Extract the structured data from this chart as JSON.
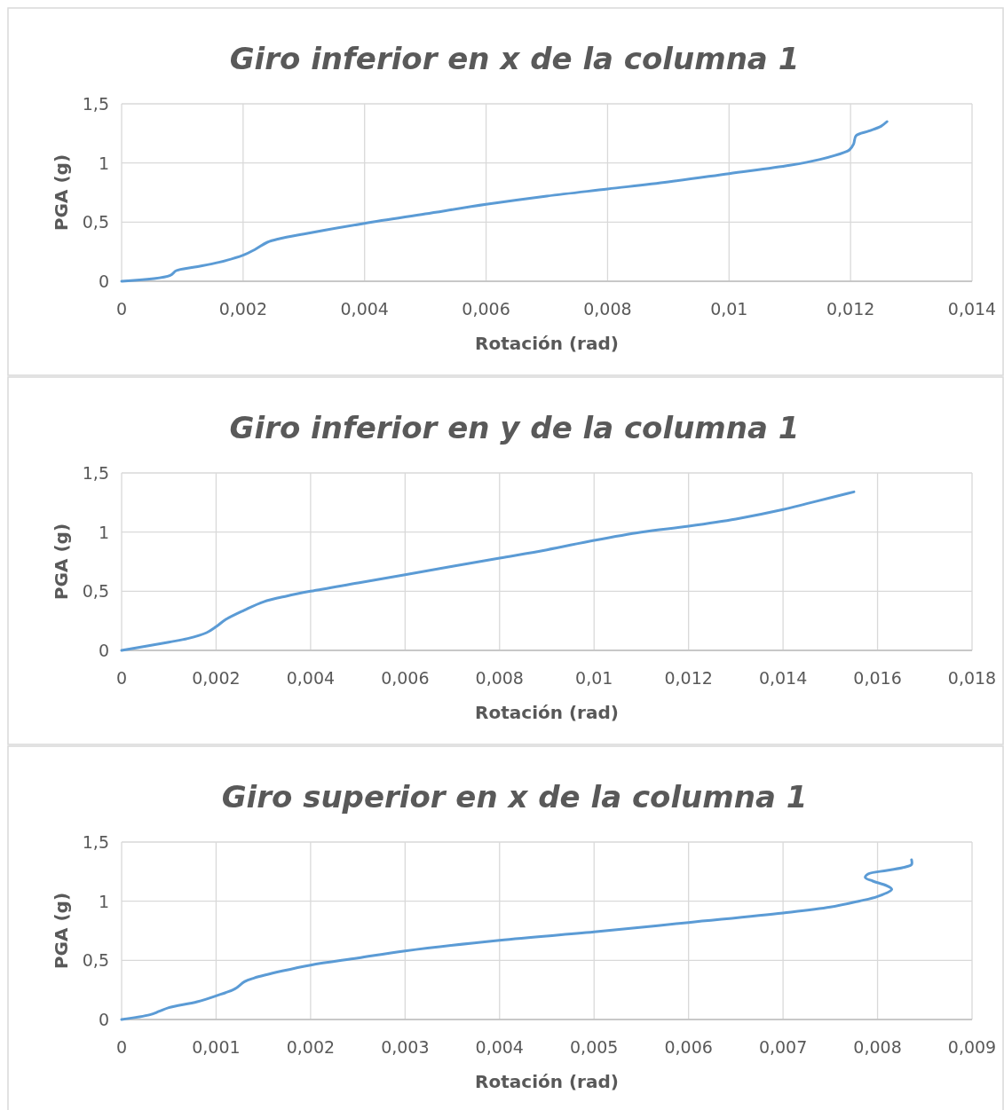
{
  "chart_data": [
    {
      "type": "line",
      "title": "Giro inferior en x de la columna 1",
      "xlabel": "Rotación (rad)",
      "ylabel": "PGA (g)",
      "xlim": [
        0,
        0.014
      ],
      "xticks": [
        {
          "value": 0,
          "label": "0"
        },
        {
          "value": 0.002,
          "label": "0,002"
        },
        {
          "value": 0.004,
          "label": "0,004"
        },
        {
          "value": 0.006,
          "label": "0,006"
        },
        {
          "value": 0.008,
          "label": "0,008"
        },
        {
          "value": 0.01,
          "label": "0,01"
        },
        {
          "value": 0.012,
          "label": "0,012"
        },
        {
          "value": 0.014,
          "label": "0,014"
        }
      ],
      "ylim": [
        0,
        1.5
      ],
      "yticks": [
        {
          "value": 0,
          "label": "0"
        },
        {
          "value": 0.5,
          "label": "0,5"
        },
        {
          "value": 1,
          "label": "1"
        },
        {
          "value": 1.5,
          "label": "1,5"
        }
      ],
      "grid": true,
      "marker": "none",
      "line_style": "solid",
      "series": [
        {
          "color": "#5b9bd5",
          "x": [
            0,
            0.0008,
            0.0009,
            0.0012,
            0.0016,
            0.002,
            0.0022,
            0.0024,
            0.0026,
            0.003,
            0.004,
            0.005,
            0.006,
            0.007,
            0.008,
            0.009,
            0.01,
            0.011,
            0.0115,
            0.0119,
            0.01198,
            0.01205,
            0.01209,
            0.0123,
            0.0125,
            0.0126
          ],
          "values": [
            0,
            0.05,
            0.09,
            0.12,
            0.16,
            0.22,
            0.27,
            0.33,
            0.36,
            0.4,
            0.49,
            0.57,
            0.65,
            0.72,
            0.78,
            0.84,
            0.91,
            0.98,
            1.03,
            1.09,
            1.11,
            1.16,
            1.23,
            1.27,
            1.31,
            1.35
          ]
        }
      ]
    },
    {
      "type": "line",
      "title": "Giro inferior en y de la columna 1",
      "xlabel": "Rotación (rad)",
      "ylabel": "PGA (g)",
      "xlim": [
        0,
        0.018
      ],
      "xticks": [
        {
          "value": 0,
          "label": "0"
        },
        {
          "value": 0.002,
          "label": "0,002"
        },
        {
          "value": 0.004,
          "label": "0,004"
        },
        {
          "value": 0.006,
          "label": "0,006"
        },
        {
          "value": 0.008,
          "label": "0,008"
        },
        {
          "value": 0.01,
          "label": "0,01"
        },
        {
          "value": 0.012,
          "label": "0,012"
        },
        {
          "value": 0.014,
          "label": "0,014"
        },
        {
          "value": 0.016,
          "label": "0,016"
        },
        {
          "value": 0.018,
          "label": "0,018"
        }
      ],
      "ylim": [
        0,
        1.5
      ],
      "yticks": [
        {
          "value": 0,
          "label": "0"
        },
        {
          "value": 0.5,
          "label": "0,5"
        },
        {
          "value": 1,
          "label": "1"
        },
        {
          "value": 1.5,
          "label": "1,5"
        }
      ],
      "grid": true,
      "marker": "none",
      "line_style": "solid",
      "series": [
        {
          "color": "#5b9bd5",
          "x": [
            0,
            0.001,
            0.0014,
            0.0018,
            0.002,
            0.0022,
            0.0026,
            0.003,
            0.0035,
            0.004,
            0.005,
            0.006,
            0.007,
            0.008,
            0.009,
            0.01,
            0.011,
            0.012,
            0.013,
            0.014,
            0.0145,
            0.015,
            0.0153,
            0.0155
          ],
          "values": [
            0,
            0.07,
            0.1,
            0.15,
            0.2,
            0.26,
            0.34,
            0.41,
            0.46,
            0.5,
            0.57,
            0.64,
            0.71,
            0.78,
            0.85,
            0.93,
            1.0,
            1.05,
            1.11,
            1.19,
            1.24,
            1.29,
            1.32,
            1.34
          ]
        }
      ]
    },
    {
      "type": "line",
      "title": "Giro superior en x de la columna 1",
      "xlabel": "Rotación (rad)",
      "ylabel": "PGA (g)",
      "xlim": [
        0,
        0.009
      ],
      "xticks": [
        {
          "value": 0,
          "label": "0"
        },
        {
          "value": 0.001,
          "label": "0,001"
        },
        {
          "value": 0.002,
          "label": "0,002"
        },
        {
          "value": 0.003,
          "label": "0,003"
        },
        {
          "value": 0.004,
          "label": "0,004"
        },
        {
          "value": 0.005,
          "label": "0,005"
        },
        {
          "value": 0.006,
          "label": "0,006"
        },
        {
          "value": 0.007,
          "label": "0,007"
        },
        {
          "value": 0.008,
          "label": "0,008"
        },
        {
          "value": 0.009,
          "label": "0,009"
        }
      ],
      "ylim": [
        0,
        1.5
      ],
      "yticks": [
        {
          "value": 0,
          "label": "0"
        },
        {
          "value": 0.5,
          "label": "0,5"
        },
        {
          "value": 1,
          "label": "1"
        },
        {
          "value": 1.5,
          "label": "1,5"
        }
      ],
      "grid": true,
      "marker": "none",
      "line_style": "solid",
      "series": [
        {
          "color": "#5b9bd5",
          "x": [
            0,
            0.0003,
            0.0004,
            0.0005,
            0.0008,
            0.001,
            0.0012,
            0.0013,
            0.0014,
            0.0017,
            0.002,
            0.0025,
            0.003,
            0.004,
            0.005,
            0.006,
            0.007,
            0.0075,
            0.0078,
            0.008,
            0.00815,
            0.0081,
            0.00795,
            0.00787,
            0.0079,
            0.0081,
            0.0083,
            0.00836,
            0.00836
          ],
          "values": [
            0,
            0.04,
            0.07,
            0.1,
            0.15,
            0.2,
            0.26,
            0.32,
            0.35,
            0.41,
            0.46,
            0.52,
            0.58,
            0.67,
            0.74,
            0.82,
            0.9,
            0.95,
            1.0,
            1.04,
            1.1,
            1.13,
            1.17,
            1.2,
            1.23,
            1.26,
            1.29,
            1.31,
            1.35
          ]
        }
      ]
    }
  ]
}
